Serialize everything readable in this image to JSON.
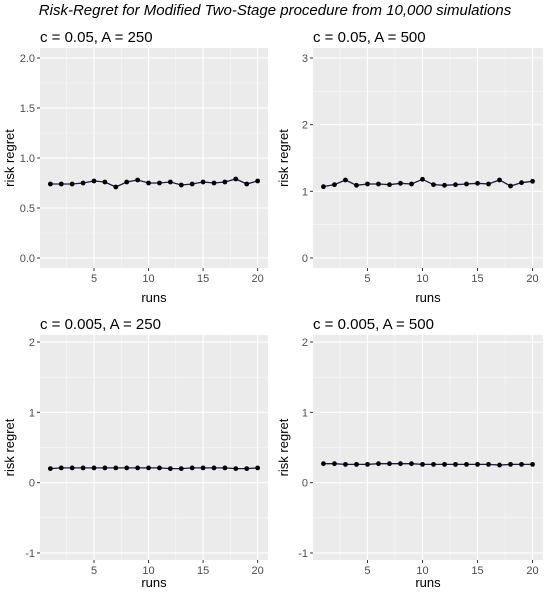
{
  "page": {
    "title": "Risk-Regret for Modified Two-Stage procedure from 10,000 simulations"
  },
  "colors": {
    "panel_background": "#ebebeb",
    "grid_major": "#ffffff",
    "line": "#1a1a4d",
    "point": "#000000",
    "tick_text": "#4d4d4d"
  },
  "chart_data": [
    {
      "type": "line",
      "title": "c = 0.05, A = 250",
      "xlabel": "runs",
      "ylabel": "risk regret",
      "xlim": [
        0.05,
        20.95
      ],
      "ylim": [
        -0.1,
        2.1
      ],
      "x_ticks": [
        5,
        10,
        15,
        20
      ],
      "x_tick_labels": [
        "5",
        "10",
        "15",
        "20"
      ],
      "y_ticks": [
        0,
        0.5,
        1,
        1.5,
        2
      ],
      "y_tick_labels": [
        "0.0",
        "0.5",
        "1.0",
        "1.5",
        "2.0"
      ],
      "grid": true,
      "x": [
        1,
        2,
        3,
        4,
        5,
        6,
        7,
        8,
        9,
        10,
        11,
        12,
        13,
        14,
        15,
        16,
        17,
        18,
        19,
        20
      ],
      "values": [
        0.74,
        0.74,
        0.74,
        0.75,
        0.77,
        0.76,
        0.71,
        0.76,
        0.78,
        0.75,
        0.75,
        0.76,
        0.73,
        0.74,
        0.76,
        0.75,
        0.76,
        0.79,
        0.74,
        0.77
      ]
    },
    {
      "type": "line",
      "title": "c = 0.05, A = 500",
      "xlabel": "runs",
      "ylabel": "risk regret",
      "xlim": [
        0.05,
        20.95
      ],
      "ylim": [
        -0.15,
        3.15
      ],
      "x_ticks": [
        5,
        10,
        15,
        20
      ],
      "x_tick_labels": [
        "5",
        "10",
        "15",
        "20"
      ],
      "y_ticks": [
        0,
        1,
        2,
        3
      ],
      "y_tick_labels": [
        "0",
        "1",
        "2",
        "3"
      ],
      "grid": true,
      "x": [
        1,
        2,
        3,
        4,
        5,
        6,
        7,
        8,
        9,
        10,
        11,
        12,
        13,
        14,
        15,
        16,
        17,
        18,
        19,
        20
      ],
      "values": [
        1.07,
        1.1,
        1.17,
        1.09,
        1.11,
        1.11,
        1.1,
        1.12,
        1.11,
        1.18,
        1.1,
        1.09,
        1.1,
        1.11,
        1.12,
        1.11,
        1.17,
        1.08,
        1.13,
        1.15
      ]
    },
    {
      "type": "line",
      "title": "c = 0.005, A = 250",
      "xlabel": "runs",
      "ylabel": "risk regret",
      "xlim": [
        0.05,
        20.95
      ],
      "ylim": [
        -1.1,
        2.1
      ],
      "x_ticks": [
        5,
        10,
        15,
        20
      ],
      "x_tick_labels": [
        "5",
        "10",
        "15",
        "20"
      ],
      "y_ticks": [
        -1,
        0,
        1,
        2
      ],
      "y_tick_labels": [
        "-1",
        "0",
        "1",
        "2"
      ],
      "grid": true,
      "x": [
        1,
        2,
        3,
        4,
        5,
        6,
        7,
        8,
        9,
        10,
        11,
        12,
        13,
        14,
        15,
        16,
        17,
        18,
        19,
        20
      ],
      "values": [
        0.2,
        0.21,
        0.21,
        0.21,
        0.21,
        0.21,
        0.21,
        0.21,
        0.21,
        0.21,
        0.21,
        0.2,
        0.2,
        0.21,
        0.21,
        0.21,
        0.21,
        0.2,
        0.2,
        0.21
      ]
    },
    {
      "type": "line",
      "title": "c = 0.005, A = 500",
      "xlabel": "runs",
      "ylabel": "risk regret",
      "xlim": [
        0.05,
        20.95
      ],
      "ylim": [
        -1.1,
        2.1
      ],
      "x_ticks": [
        5,
        10,
        15,
        20
      ],
      "x_tick_labels": [
        "5",
        "10",
        "15",
        "20"
      ],
      "y_ticks": [
        -1,
        0,
        1,
        2
      ],
      "y_tick_labels": [
        "-1",
        "0",
        "1",
        "2"
      ],
      "grid": true,
      "x": [
        1,
        2,
        3,
        4,
        5,
        6,
        7,
        8,
        9,
        10,
        11,
        12,
        13,
        14,
        15,
        16,
        17,
        18,
        19,
        20
      ],
      "values": [
        0.27,
        0.27,
        0.26,
        0.26,
        0.26,
        0.27,
        0.27,
        0.27,
        0.27,
        0.26,
        0.26,
        0.26,
        0.26,
        0.26,
        0.26,
        0.26,
        0.25,
        0.26,
        0.26,
        0.26
      ]
    }
  ]
}
